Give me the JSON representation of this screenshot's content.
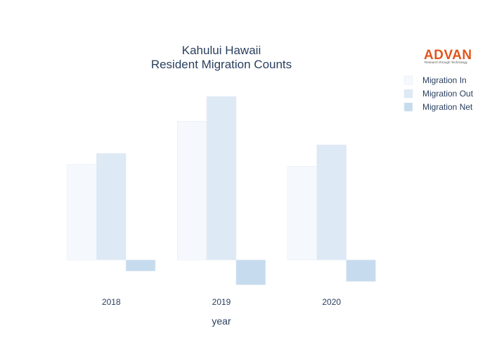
{
  "chart_data": {
    "type": "bar",
    "title": "Kahului Hawaii",
    "subtitle": "Resident Migration Counts",
    "xlabel": "year",
    "ylabel": "",
    "categories": [
      "2018",
      "2019",
      "2020"
    ],
    "series": [
      {
        "name": "Migration In",
        "color": "#f5f9fd",
        "values": [
          730,
          1060,
          715
        ]
      },
      {
        "name": "Migration Out",
        "color": "#dde9f5",
        "values": [
          815,
          1250,
          880
        ]
      },
      {
        "name": "Migration Net",
        "color": "#c6dbee",
        "values": [
          -85,
          -190,
          -165
        ]
      }
    ],
    "ylim": [
      -220,
      1450
    ],
    "grid": false,
    "legend": "top-right"
  },
  "logo": {
    "name": "ADVAN",
    "tagline": "Research through Technology"
  }
}
